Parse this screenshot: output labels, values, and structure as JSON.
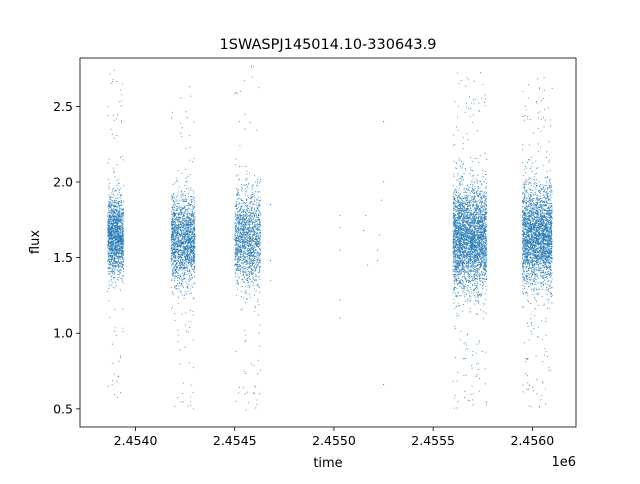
{
  "chart_data": {
    "type": "scatter",
    "title": "1SWASPJ145014.10-330643.9",
    "xlabel": "time",
    "ylabel": "flux",
    "x_offset_label": "1e6",
    "xlim": [
      2.45372,
      2.45622
    ],
    "ylim": [
      0.38,
      2.82
    ],
    "xticks": [
      2.454,
      2.4545,
      2.455,
      2.4555,
      2.456
    ],
    "xtick_labels": [
      "2.4540",
      "2.4545",
      "2.4550",
      "2.4555",
      "2.4560"
    ],
    "yticks": [
      0.5,
      1.0,
      1.5,
      2.0,
      2.5
    ],
    "ytick_labels": [
      "0.5",
      "1.0",
      "1.5",
      "2.0",
      "2.5"
    ],
    "grid": false,
    "marker_color": "#1f77b4",
    "series": [
      {
        "clusters": [
          {
            "x_range": [
              2.45386,
              2.45394
            ],
            "center": 1.64,
            "spread": 0.13,
            "min": 0.52,
            "max": 2.78,
            "count": 1500
          },
          {
            "x_range": [
              2.45418,
              2.4543
            ],
            "center": 1.62,
            "spread": 0.14,
            "min": 0.5,
            "max": 2.66,
            "count": 1700
          },
          {
            "x_range": [
              2.4545,
              2.45463
            ],
            "center": 1.63,
            "spread": 0.15,
            "min": 0.49,
            "max": 2.78,
            "count": 1500
          },
          {
            "x_range": [
              2.4556,
              2.45577
            ],
            "center": 1.63,
            "spread": 0.17,
            "min": 0.5,
            "max": 2.76,
            "count": 3200
          },
          {
            "x_range": [
              2.45595,
              2.4561
            ],
            "center": 1.64,
            "spread": 0.16,
            "min": 0.49,
            "max": 2.7,
            "count": 2800
          }
        ],
        "isolated_points": [
          [
            2.45468,
            1.85
          ],
          [
            2.45468,
            1.48
          ],
          [
            2.45468,
            1.35
          ],
          [
            2.45503,
            1.78
          ],
          [
            2.45503,
            1.7
          ],
          [
            2.45503,
            1.55
          ],
          [
            2.45503,
            1.22
          ],
          [
            2.45503,
            1.1
          ],
          [
            2.45515,
            1.68
          ],
          [
            2.45516,
            1.78
          ],
          [
            2.45517,
            1.45
          ],
          [
            2.45522,
            1.55
          ],
          [
            2.45522,
            1.48
          ],
          [
            2.45523,
            1.65
          ],
          [
            2.45524,
            1.88
          ],
          [
            2.45525,
            2.0
          ],
          [
            2.45525,
            2.4
          ],
          [
            2.45525,
            0.66
          ]
        ]
      }
    ]
  }
}
